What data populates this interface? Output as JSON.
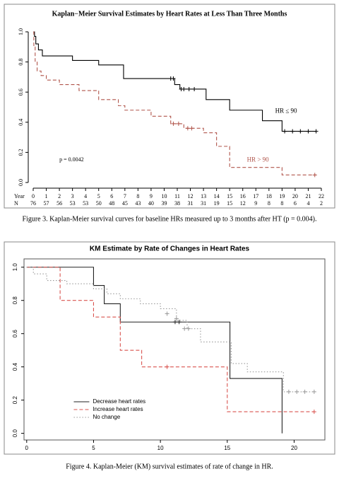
{
  "chart_data": [
    {
      "type": "step",
      "title": "Kaplan−Meier Survival Estimates by Heart Rates at Less Than Three Months",
      "caption": "Figure 3. Kaplan-Meier survival curves for baseline HRs measured up to 3 months after HT (p = 0.004).",
      "annotation": "p = 0.0042",
      "xlim": [
        0,
        22
      ],
      "xticks": [
        0,
        1,
        2,
        3,
        4,
        5,
        6,
        7,
        8,
        9,
        10,
        11,
        12,
        13,
        14,
        15,
        16,
        17,
        18,
        19,
        20,
        21,
        22
      ],
      "ylim": [
        0,
        1
      ],
      "yticks": [
        {
          "value": 0,
          "label": "0.0"
        },
        0.2,
        0.4,
        0.6,
        0.8,
        {
          "value": 1,
          "label": "1.0"
        }
      ],
      "grid": false,
      "legend": false,
      "risk_table": {
        "row_labels": [
          "Year",
          "N"
        ],
        "counts": [
          "76",
          "57",
          "56",
          "53",
          "53",
          "50",
          "48",
          "45",
          "43",
          "40",
          "39",
          "38",
          "31",
          "31",
          "19",
          "15",
          "12",
          "9",
          "8",
          "8",
          "6",
          "4",
          "2"
        ]
      },
      "series": [
        {
          "name": "HR ≤ 90",
          "color": "#000000",
          "dash": "solid",
          "x": [
            0,
            0.1,
            0.2,
            0.4,
            0.7,
            3,
            5,
            6.9,
            10.8,
            11.2,
            13.2,
            15,
            17.5,
            19,
            21.6
          ],
          "values": [
            1,
            0.97,
            0.92,
            0.88,
            0.84,
            0.81,
            0.78,
            0.69,
            0.65,
            0.62,
            0.55,
            0.48,
            0.41,
            0.34,
            0.34
          ],
          "censor_x": [
            10.5,
            10.7,
            11.3,
            11.5,
            11.9,
            12.3,
            19.2,
            19.8,
            20.4,
            21,
            21.6
          ],
          "censor_values": [
            0.69,
            0.69,
            0.62,
            0.62,
            0.62,
            0.62,
            0.34,
            0.34,
            0.34,
            0.34,
            0.34
          ]
        },
        {
          "name": "HR > 90",
          "color": "#b0544a",
          "dash": "dashed",
          "x": [
            0,
            0.05,
            0.15,
            0.3,
            0.6,
            1,
            2,
            3.5,
            5,
            6.5,
            7,
            9,
            10.5,
            11.5,
            13,
            14,
            15,
            19,
            21.6
          ],
          "values": [
            1,
            0.9,
            0.8,
            0.74,
            0.71,
            0.68,
            0.65,
            0.61,
            0.55,
            0.51,
            0.48,
            0.44,
            0.39,
            0.36,
            0.33,
            0.24,
            0.1,
            0.05,
            0.05
          ],
          "censor_x": [
            10.7,
            11.1,
            11.8,
            12.1,
            21.5
          ],
          "censor_values": [
            0.39,
            0.39,
            0.36,
            0.36,
            0.05
          ]
        }
      ]
    },
    {
      "type": "step",
      "title": "KM Estimate by Rate of Changes in Heart Rates",
      "caption": "Figure 4. Kaplan-Meier (KM) survival estimates of rate of change in HR.",
      "xlim": [
        -0.2,
        22.3
      ],
      "xticks": [
        0,
        5,
        10,
        15,
        20
      ],
      "ylim": [
        -0.04,
        1.05
      ],
      "yticks": [
        {
          "value": 0,
          "label": "0.0"
        },
        0.2,
        0.4,
        0.6,
        0.8,
        {
          "value": 1,
          "label": "1.0"
        }
      ],
      "grid": false,
      "legend": "lower-left",
      "series": [
        {
          "name": "Decrease heart rates",
          "color": "#222222",
          "dash": "solid",
          "x": [
            0,
            5,
            5.8,
            7,
            15.2,
            19.1,
            19.1
          ],
          "values": [
            1,
            0.89,
            0.78,
            0.67,
            0.33,
            0.33,
            0
          ],
          "censor_x": [
            11.1,
            11.4
          ],
          "censor_values": [
            0.67,
            0.67
          ]
        },
        {
          "name": "Increase heart rates",
          "color": "#d9534f",
          "dash": "dashed",
          "x": [
            0,
            2.5,
            5,
            7,
            8.6,
            15,
            21.5
          ],
          "values": [
            1,
            0.8,
            0.7,
            0.5,
            0.4,
            0.13,
            0.13
          ],
          "censor_x": [
            10.5,
            21.5
          ],
          "censor_values": [
            0.4,
            0.13
          ]
        },
        {
          "name": "No change",
          "color": "#999999",
          "dash": "dotted",
          "x": [
            0,
            0.5,
            1.5,
            3,
            5,
            6,
            7,
            8.5,
            10,
            11.2,
            12,
            13,
            15.3,
            16.5,
            19.2,
            21.5
          ],
          "values": [
            1,
            0.96,
            0.92,
            0.9,
            0.87,
            0.84,
            0.81,
            0.78,
            0.75,
            0.68,
            0.63,
            0.55,
            0.42,
            0.37,
            0.25,
            0.25
          ],
          "censor_x": [
            10.5,
            11.2,
            11.8,
            12.1,
            19.6,
            20.2,
            20.8,
            21.5
          ],
          "censor_values": [
            0.72,
            0.69,
            0.63,
            0.63,
            0.25,
            0.25,
            0.25,
            0.25
          ]
        }
      ]
    }
  ]
}
